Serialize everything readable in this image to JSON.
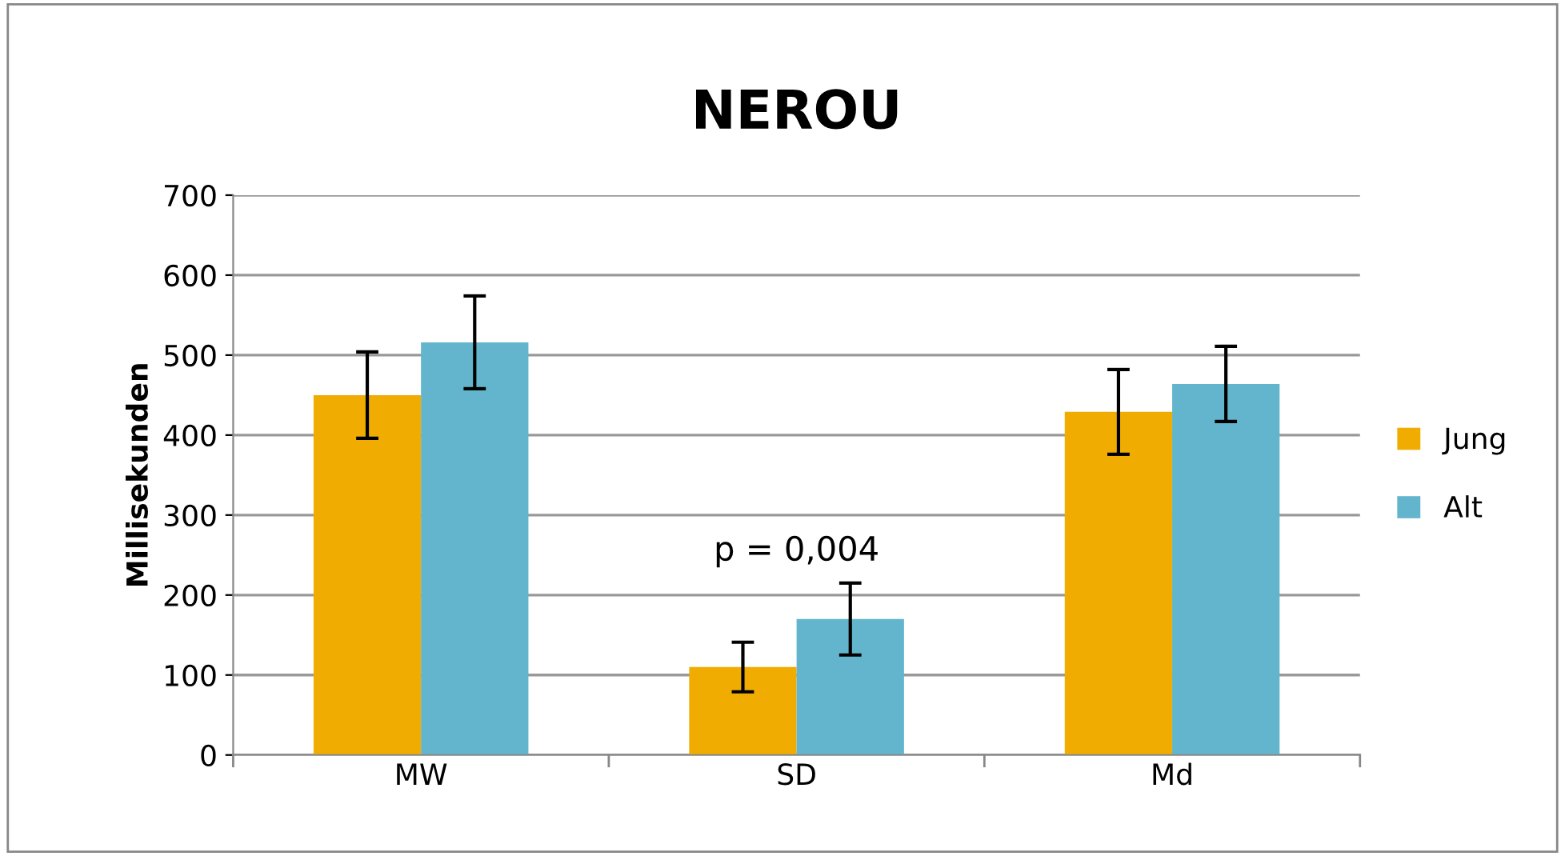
{
  "chart_data": {
    "type": "bar",
    "title": "NEROU",
    "ylabel": "Millisekunden",
    "categories": [
      "MW",
      "SD",
      "Md"
    ],
    "series": [
      {
        "name": "Jung",
        "color": "#f0ac00",
        "values": [
          450,
          110,
          429
        ],
        "errors": [
          54,
          31,
          53
        ]
      },
      {
        "name": "Alt",
        "color": "#62b5cc",
        "values": [
          516,
          170,
          464
        ],
        "errors": [
          58,
          45,
          47
        ]
      }
    ],
    "ylim": [
      0,
      700
    ],
    "yticks": [
      0,
      100,
      200,
      300,
      400,
      500,
      600,
      700
    ],
    "grid": "y",
    "legend": "right",
    "annotations": [
      "p = 0,004"
    ]
  }
}
